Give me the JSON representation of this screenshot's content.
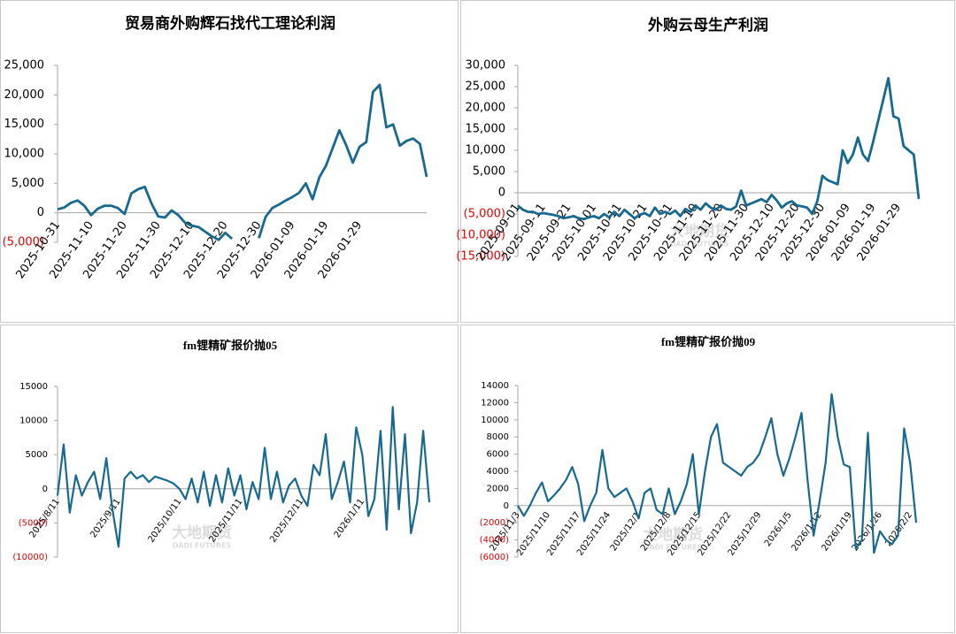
{
  "chart_data": [
    {
      "type": "line",
      "title": "贸易商外购辉石找代工理论利润",
      "color": "#17698f",
      "x": [
        "2025-10-31",
        null,
        null,
        null,
        null,
        "2025-11-10",
        null,
        null,
        null,
        null,
        "2025-11-20",
        null,
        null,
        null,
        null,
        "2025-11-30",
        null,
        null,
        null,
        null,
        "2025-12-10",
        null,
        null,
        null,
        null,
        "2025-12-20",
        null,
        null,
        null,
        null,
        "2025-12-30",
        null,
        null,
        null,
        null,
        "2026-01-09",
        null,
        null,
        null,
        null,
        "2026-01-19",
        null,
        null,
        null,
        null,
        "2026-01-29",
        null,
        null,
        null,
        null,
        null,
        null,
        null,
        null,
        null,
        null
      ],
      "values": [
        600,
        900,
        1700,
        2100,
        1200,
        -400,
        700,
        1200,
        1200,
        800,
        -200,
        3300,
        4000,
        4400,
        1600,
        -600,
        -800,
        400,
        -400,
        -1700,
        -2200,
        -2400,
        -3200,
        -4000,
        -4600,
        -3400,
        -4400,
        null,
        null,
        null,
        -4300,
        -700,
        800,
        1400,
        2100,
        2700,
        3400,
        5000,
        2300,
        6000,
        8000,
        11000,
        14000,
        11500,
        8500,
        11200,
        12000,
        20500,
        21700,
        14500,
        15000,
        11400,
        12200,
        12600,
        11700,
        6100
      ],
      "ylim": [
        -5000,
        25000
      ],
      "yticks": [
        {
          "value": 25000,
          "label": "25,000"
        },
        {
          "value": 20000,
          "label": "20,000"
        },
        {
          "value": 15000,
          "label": "15,000"
        },
        {
          "value": 10000,
          "label": "10,000"
        },
        {
          "value": 5000,
          "label": "5,000"
        },
        0,
        {
          "value": -5000,
          "label": "(5,000)"
        }
      ]
    },
    {
      "type": "line",
      "title": "外购云母生产利润",
      "color": "#17698f",
      "watermark": [
        "大地期货",
        "DADI FUTURES"
      ],
      "x": [
        "2025-09-01",
        null,
        null,
        null,
        null,
        "2025-09-11",
        null,
        null,
        null,
        null,
        "2025-09-21",
        null,
        null,
        null,
        null,
        "2025-10-01",
        null,
        null,
        null,
        null,
        "2025-10-11",
        null,
        null,
        null,
        null,
        "2025-10-21",
        null,
        null,
        null,
        null,
        "2025-10-31",
        null,
        null,
        null,
        null,
        "2025-11-10",
        null,
        null,
        null,
        null,
        "2025-11-20",
        null,
        null,
        null,
        null,
        "2025-11-30",
        null,
        null,
        null,
        null,
        "2025-12-10",
        null,
        null,
        null,
        null,
        "2025-12-20",
        null,
        null,
        null,
        null,
        "2025-12-30",
        null,
        null,
        null,
        null,
        "2026-01-09",
        null,
        null,
        null,
        null,
        "2026-01-19",
        null,
        null,
        null,
        null,
        "2026-01-29",
        null,
        null,
        null,
        null
      ],
      "values": [
        -3000,
        -4000,
        -4500,
        -4500,
        -5000,
        -4800,
        -5000,
        -5200,
        -5500,
        -6000,
        -5800,
        -5500,
        -6000,
        -6200,
        -5800,
        -5500,
        -6000,
        -5000,
        -5800,
        -4500,
        -5500,
        -4000,
        -5000,
        -6000,
        -5200,
        -4800,
        -5500,
        -3500,
        -5000,
        -4500,
        -5000,
        -4200,
        -5500,
        -3800,
        -4500,
        -3000,
        -4000,
        -2500,
        -3500,
        -4000,
        -3000,
        -3800,
        -4000,
        -3200,
        500,
        -3000,
        -2500,
        -2000,
        -1500,
        -2200,
        -500,
        -1800,
        -3500,
        -2500,
        -2000,
        -3000,
        -3200,
        -3500,
        -5000,
        -2000,
        4000,
        3000,
        2500,
        2000,
        10000,
        7000,
        9000,
        13000,
        9000,
        7500,
        12000,
        17000,
        22000,
        27000,
        18000,
        17500,
        11000,
        10000,
        9000,
        -1500
      ],
      "ylim": [
        -15000,
        30000
      ],
      "yticks": [
        {
          "value": 30000,
          "label": "30,000"
        },
        {
          "value": 25000,
          "label": "25,000"
        },
        {
          "value": 20000,
          "label": "20,000"
        },
        {
          "value": 15000,
          "label": "15,000"
        },
        {
          "value": 10000,
          "label": "10,000"
        },
        {
          "value": 5000,
          "label": "5,000"
        },
        0,
        {
          "value": -5000,
          "label": "(5,000)"
        },
        {
          "value": -10000,
          "label": "(10,000)"
        },
        {
          "value": -15000,
          "label": "(15,000)"
        }
      ]
    },
    {
      "type": "line",
      "title": "fm锂精矿报价抛05",
      "color": "#17698f",
      "watermark": [
        "大地期货",
        "DADI FUTURES"
      ],
      "x": [
        "2025/8/11",
        null,
        null,
        null,
        null,
        null,
        null,
        null,
        null,
        null,
        "2025/9/11",
        null,
        null,
        null,
        null,
        null,
        null,
        null,
        null,
        null,
        "2025/10/11",
        null,
        null,
        null,
        null,
        null,
        null,
        null,
        null,
        null,
        "2025/11/11",
        null,
        null,
        null,
        null,
        null,
        null,
        null,
        null,
        null,
        "2025/12/11",
        null,
        null,
        null,
        null,
        null,
        null,
        null,
        null,
        null,
        "2026/1/11",
        null,
        null,
        null,
        null,
        null,
        null,
        null,
        null,
        null,
        null,
        null
      ],
      "values": [
        -1000,
        6500,
        -3500,
        2000,
        -1000,
        1000,
        2500,
        -1500,
        4500,
        -3000,
        -8500,
        1500,
        2500,
        1500,
        2000,
        1000,
        1800,
        1500,
        1200,
        800,
        0,
        -1500,
        1500,
        -2000,
        2500,
        -2500,
        2000,
        -2000,
        3000,
        -1000,
        2000,
        -3000,
        1000,
        -1500,
        6000,
        -1500,
        2500,
        -2000,
        500,
        1500,
        -1000,
        -2500,
        3500,
        2000,
        8000,
        -1500,
        1000,
        4000,
        -2000,
        9000,
        5000,
        -4000,
        -1500,
        8500,
        -6000,
        12000,
        -3000,
        8000,
        -6500,
        -2000,
        8500,
        -2000
      ],
      "ylim": [
        -10000,
        15000
      ],
      "yticks": [
        15000,
        10000,
        5000,
        0,
        {
          "value": -5000,
          "label": "(5000)"
        },
        {
          "value": -10000,
          "label": "(10000)"
        }
      ]
    },
    {
      "type": "line",
      "title": "fm锂精矿报价抛09",
      "color": "#17698f",
      "watermark": [
        "大地期货",
        "DADI FUTURES"
      ],
      "x": [
        "2025/11/3",
        null,
        null,
        null,
        null,
        "2025/11/10",
        null,
        null,
        null,
        null,
        "2025/11/17",
        null,
        null,
        null,
        null,
        "2025/11/24",
        null,
        null,
        null,
        null,
        "2025/12/1",
        null,
        null,
        null,
        null,
        "2025/12/8",
        null,
        null,
        null,
        null,
        "2025/12/15",
        null,
        null,
        null,
        null,
        "2025/12/22",
        null,
        null,
        null,
        null,
        "2025/12/29",
        null,
        null,
        null,
        null,
        "2026/1/5",
        null,
        null,
        null,
        null,
        "2026/1/12",
        null,
        null,
        null,
        null,
        "2026/1/19",
        null,
        null,
        null,
        null,
        "2026/1/26",
        null,
        null,
        null,
        null,
        "2026/2/2",
        null
      ],
      "values": [
        0,
        -1200,
        0,
        1500,
        2700,
        500,
        1200,
        2000,
        3000,
        4500,
        2500,
        -1800,
        0,
        1500,
        6500,
        2000,
        1000,
        1500,
        2000,
        500,
        -1500,
        1500,
        2000,
        -500,
        -1000,
        2000,
        -1000,
        500,
        2500,
        6000,
        -1000,
        4000,
        8000,
        9500,
        5000,
        4500,
        4000,
        3500,
        4500,
        5000,
        6000,
        8000,
        10200,
        6000,
        3500,
        5500,
        8000,
        10800,
        3000,
        -3500,
        500,
        5000,
        13000,
        8000,
        4800,
        4500,
        -5000,
        -4000,
        8500,
        -5500,
        -3000,
        -4000,
        -4500,
        -3500,
        9000,
        5000,
        -2000
      ],
      "ylim": [
        -6000,
        14000
      ],
      "yticks": [
        14000,
        12000,
        10000,
        8000,
        6000,
        4000,
        2000,
        0,
        {
          "value": -2000,
          "label": "(2000)"
        },
        {
          "value": -4000,
          "label": "(4000)"
        },
        {
          "value": -6000,
          "label": "(6000)"
        }
      ]
    }
  ]
}
